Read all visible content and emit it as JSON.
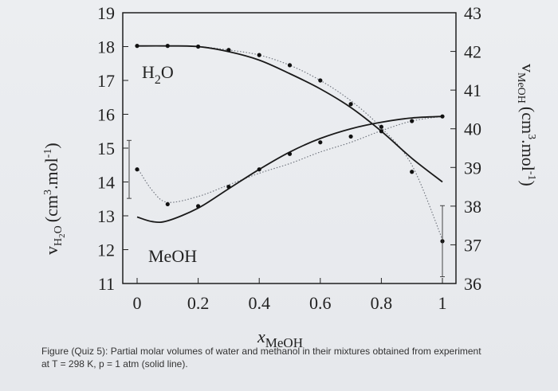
{
  "chart_data": {
    "type": "line",
    "caption": "Figure (Quiz 5): Partial molar volumes of water and methanol in their mixtures obtained from experiment at T = 298 K, p = 1 atm (solid line).",
    "xlabel": {
      "sym": "x",
      "sub": "MeOH"
    },
    "ylabel_left": {
      "pre": "v",
      "sub": "H",
      "sub2": "2",
      "mid": "O",
      "unit": "(cm",
      "sup": "3",
      "unit2": ".mol",
      "sup2": "-1",
      "close": ")"
    },
    "ylabel_right": {
      "pre": "v",
      "sub": "MeOH",
      "unit": "(cm",
      "sup": "3",
      "unit2": ".mol",
      "sup2": "-1",
      "close": ")"
    },
    "xlim": [
      0,
      1
    ],
    "ylim_left": [
      11,
      19
    ],
    "ylim_right": [
      36,
      43
    ],
    "x_ticks": [
      "0",
      "0.2",
      "0.4",
      "0.6",
      "0.8",
      "1"
    ],
    "y_left_ticks": [
      "11",
      "12",
      "13",
      "14",
      "15",
      "16",
      "17",
      "18",
      "19"
    ],
    "y_right_ticks": [
      "36",
      "37",
      "38",
      "39",
      "40",
      "41",
      "42",
      "43"
    ],
    "annotations": {
      "water": {
        "t1": "H",
        "sub": "2",
        "t2": "O"
      },
      "methanol": "MeOH"
    },
    "series": [
      {
        "name": "H2O",
        "axis": "left",
        "solid": [
          [
            0,
            18.02
          ],
          [
            0.1,
            18.02
          ],
          [
            0.2,
            18.0
          ],
          [
            0.3,
            17.85
          ],
          [
            0.4,
            17.6
          ],
          [
            0.5,
            17.2
          ],
          [
            0.6,
            16.75
          ],
          [
            0.7,
            16.2
          ],
          [
            0.8,
            15.5
          ],
          [
            0.9,
            14.7
          ],
          [
            1.0,
            14.0
          ]
        ],
        "dotted": [
          [
            0,
            18.02
          ],
          [
            0.1,
            18.02
          ],
          [
            0.2,
            18.0
          ],
          [
            0.3,
            17.9
          ],
          [
            0.4,
            17.75
          ],
          [
            0.5,
            17.45
          ],
          [
            0.6,
            17.0
          ],
          [
            0.7,
            16.4
          ],
          [
            0.8,
            15.6
          ],
          [
            0.9,
            14.5
          ],
          [
            1.0,
            12.3
          ]
        ],
        "points": [
          [
            0,
            18.02
          ],
          [
            0.1,
            18.02
          ],
          [
            0.2,
            18.0
          ],
          [
            0.3,
            17.9
          ],
          [
            0.4,
            17.75
          ],
          [
            0.5,
            17.45
          ],
          [
            0.6,
            17.0
          ],
          [
            0.7,
            16.3
          ],
          [
            0.8,
            15.5
          ],
          [
            0.9,
            14.3
          ],
          [
            1.0,
            12.25
          ]
        ]
      },
      {
        "name": "MeOH",
        "axis": "right",
        "solid": [
          [
            0,
            37.72
          ],
          [
            0.05,
            37.6
          ],
          [
            0.1,
            37.62
          ],
          [
            0.2,
            37.95
          ],
          [
            0.3,
            38.45
          ],
          [
            0.4,
            38.95
          ],
          [
            0.5,
            39.4
          ],
          [
            0.6,
            39.75
          ],
          [
            0.7,
            40.0
          ],
          [
            0.8,
            40.17
          ],
          [
            0.9,
            40.28
          ],
          [
            1.0,
            40.32
          ]
        ],
        "dotted": [
          [
            0,
            39.0
          ],
          [
            0.05,
            38.4
          ],
          [
            0.1,
            38.1
          ],
          [
            0.2,
            38.25
          ],
          [
            0.3,
            38.55
          ],
          [
            0.4,
            38.85
          ],
          [
            0.5,
            39.1
          ],
          [
            0.6,
            39.4
          ],
          [
            0.7,
            39.65
          ],
          [
            0.8,
            39.95
          ],
          [
            0.9,
            40.2
          ],
          [
            1.0,
            40.32
          ]
        ],
        "points": [
          [
            0,
            38.95
          ],
          [
            0.1,
            38.05
          ],
          [
            0.2,
            38.0
          ],
          [
            0.3,
            38.5
          ],
          [
            0.4,
            38.95
          ],
          [
            0.5,
            39.35
          ],
          [
            0.6,
            39.65
          ],
          [
            0.7,
            39.8
          ],
          [
            0.8,
            40.05
          ],
          [
            0.9,
            40.2
          ],
          [
            1.0,
            40.32
          ]
        ]
      }
    ]
  }
}
